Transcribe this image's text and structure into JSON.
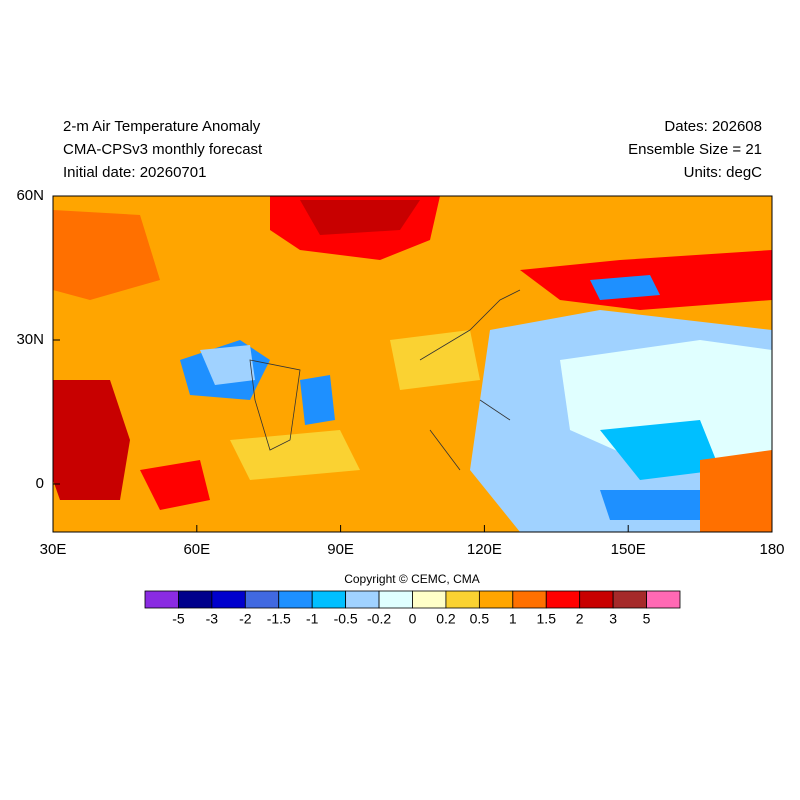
{
  "header": {
    "left": [
      "2-m Air Temperature Anomaly",
      "CMA-CPSv3 monthly forecast",
      "Initial date: 20260701"
    ],
    "right": [
      "Dates: 202608",
      "Ensemble Size = 21",
      "Units: degC"
    ]
  },
  "map": {
    "lat_labels": [
      "60N",
      "30N",
      "0"
    ],
    "lon_labels": [
      "30E",
      "60E",
      "90E",
      "120E",
      "150E",
      "180"
    ]
  },
  "copyright": "Copyright © CEMC, CMA",
  "colorbar": {
    "levels": [
      -5,
      -3,
      -2,
      -1.5,
      -1,
      -0.5,
      -0.2,
      0,
      0.2,
      0.5,
      1,
      1.5,
      2,
      3,
      5
    ],
    "colors": [
      "#8a2be2",
      "#00008b",
      "#0000cd",
      "#4169e1",
      "#1e90ff",
      "#00bfff",
      "#a0d2ff",
      "#e0ffff",
      "#ffffc8",
      "#fad232",
      "#ffa500",
      "#ff7000",
      "#ff0000",
      "#c80000",
      "#a52a2a",
      "#ff69b4"
    ]
  }
}
